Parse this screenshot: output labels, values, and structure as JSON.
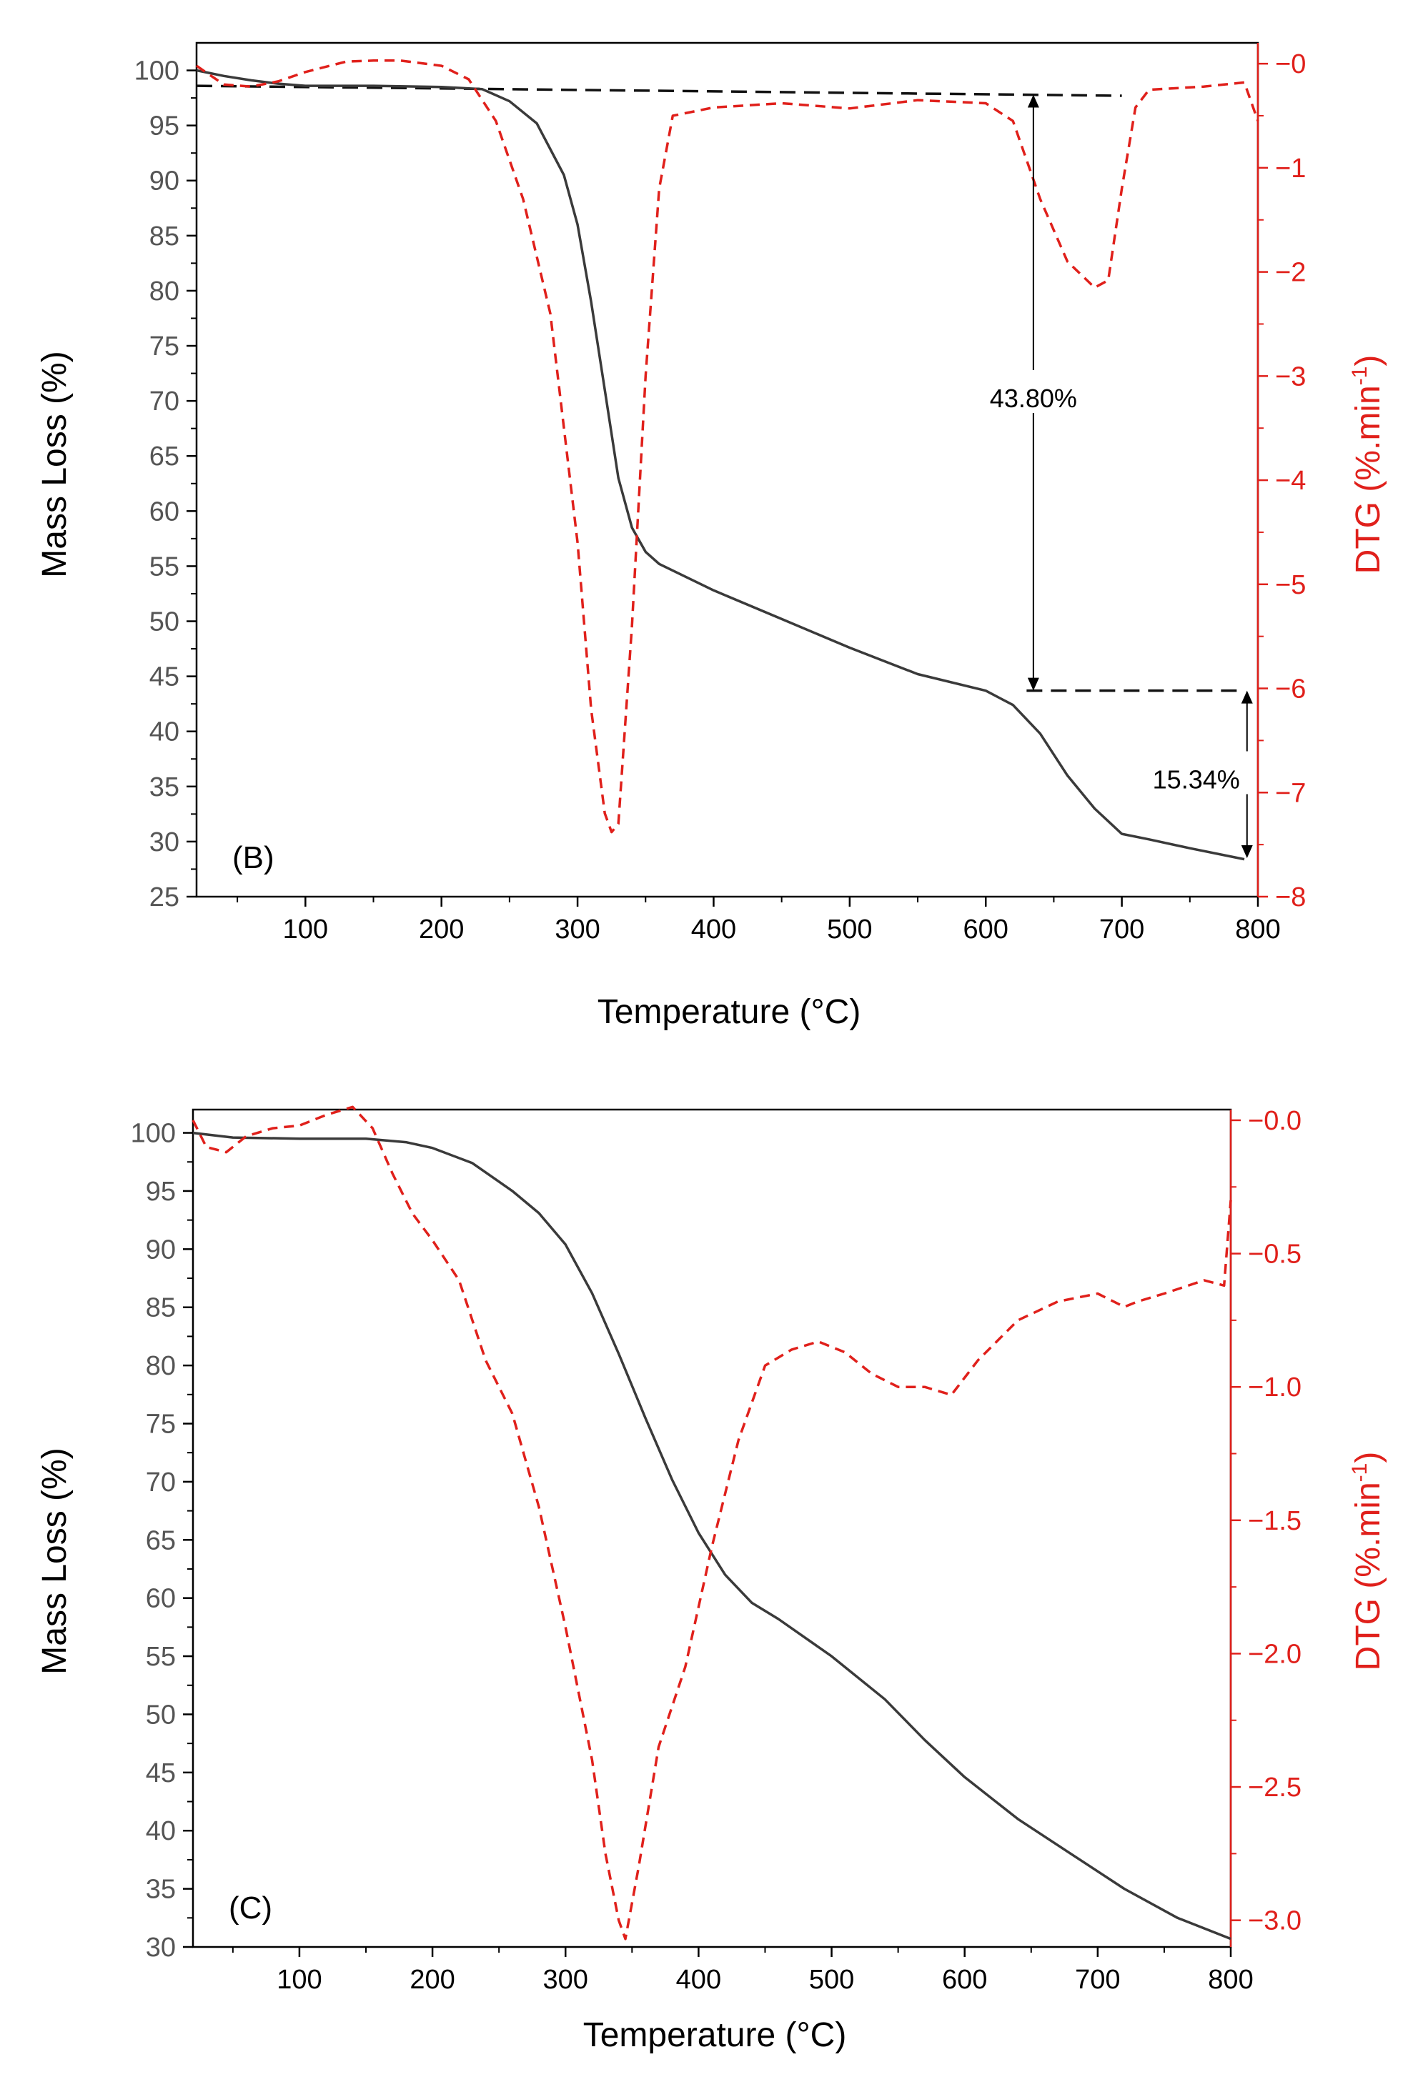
{
  "colors": {
    "tga_line": "#3a3a3a",
    "dtg_line": "#e0201b",
    "axis": "#000000",
    "left_tick_text": "#555555",
    "right_axis": "#e0201b"
  },
  "chart_data": [
    {
      "type": "line",
      "panel_label": "(B)",
      "xlabel": "Temperature (°C)",
      "ylabel": "Mass Loss (%)",
      "y2label_main": "DTG (%.min",
      "y2label_sup": "-1",
      "y2label_close": ")",
      "xlim": [
        20,
        800
      ],
      "ylim": [
        25,
        102.5
      ],
      "y2lim": [
        -8,
        0.2
      ],
      "x_ticks": [
        100,
        200,
        300,
        400,
        500,
        600,
        700,
        800
      ],
      "y_ticks": [
        25,
        30,
        35,
        40,
        45,
        50,
        55,
        60,
        65,
        70,
        75,
        80,
        85,
        90,
        95,
        100
      ],
      "y2_ticks": [
        -8,
        -7,
        -6,
        -5,
        -4,
        -3,
        -2,
        -1,
        0
      ],
      "series": [
        {
          "name": "Mass Loss",
          "axis": "left",
          "style": "solid",
          "x": [
            20,
            40,
            60,
            80,
            100,
            150,
            200,
            230,
            250,
            270,
            290,
            300,
            310,
            320,
            330,
            340,
            350,
            360,
            380,
            400,
            450,
            500,
            550,
            600,
            620,
            640,
            660,
            680,
            700,
            720,
            750,
            790
          ],
          "y": [
            100,
            99.5,
            99.1,
            98.8,
            98.6,
            98.6,
            98.5,
            98.3,
            97.2,
            95.2,
            90.5,
            86,
            79,
            71,
            63,
            58.5,
            56.3,
            55.2,
            54,
            52.8,
            50.2,
            47.6,
            45.2,
            43.7,
            42.4,
            39.8,
            36,
            33,
            30.7,
            30.2,
            29.4,
            28.4
          ]
        },
        {
          "name": "DTG",
          "axis": "right",
          "style": "dashed",
          "x": [
            20,
            40,
            60,
            80,
            100,
            130,
            150,
            170,
            200,
            220,
            240,
            260,
            280,
            300,
            310,
            320,
            325,
            330,
            340,
            350,
            360,
            370,
            400,
            450,
            500,
            550,
            600,
            620,
            640,
            660,
            680,
            690,
            700,
            710,
            720,
            760,
            790,
            800
          ],
          "y": [
            -0.02,
            -0.2,
            -0.22,
            -0.17,
            -0.08,
            0.02,
            0.03,
            0.03,
            -0.02,
            -0.15,
            -0.55,
            -1.3,
            -2.4,
            -4.6,
            -6.2,
            -7.2,
            -7.38,
            -7.3,
            -5.4,
            -3.0,
            -1.2,
            -0.5,
            -0.42,
            -0.38,
            -0.43,
            -0.35,
            -0.38,
            -0.55,
            -1.3,
            -1.9,
            -2.15,
            -2.08,
            -1.2,
            -0.42,
            -0.25,
            -0.22,
            -0.18,
            -0.55
          ]
        }
      ],
      "reference_lines": [
        {
          "name": "upper-baseline",
          "x": [
            20,
            700
          ],
          "y": [
            98.6,
            97.7
          ]
        },
        {
          "name": "lower-baseline",
          "x": [
            630,
            790
          ],
          "y": [
            43.7,
            43.7
          ]
        }
      ],
      "annotations": [
        {
          "text": "43.80%",
          "x": 635,
          "y_from": 97.8,
          "y_to": 43.7,
          "label_y": 70.2
        },
        {
          "text": "15.34%",
          "x": 792,
          "y_from": 28.5,
          "y_to": 43.7,
          "label_y": 35.6
        }
      ]
    },
    {
      "type": "line",
      "panel_label": "(C)",
      "xlabel": "Temperature (°C)",
      "ylabel": "Mass Loss (%)",
      "y2label_main": "DTG (%.min",
      "y2label_sup": "-1",
      "y2label_close": ")",
      "xlim": [
        20,
        800
      ],
      "ylim": [
        30,
        102
      ],
      "y2lim": [
        -3.1,
        0.04
      ],
      "x_ticks": [
        100,
        200,
        300,
        400,
        500,
        600,
        700,
        800
      ],
      "y_ticks": [
        30,
        35,
        40,
        45,
        50,
        55,
        60,
        65,
        70,
        75,
        80,
        85,
        90,
        95,
        100
      ],
      "y2_ticks": [
        -3.0,
        -2.5,
        -2.0,
        -1.5,
        -1.0,
        -0.5,
        -0.0
      ],
      "y2_tick_labels": [
        "-3.0",
        "-2.5",
        "-2.0",
        "-1.5",
        "-1.0",
        "-0.5",
        "-0.0"
      ],
      "series": [
        {
          "name": "Mass Loss",
          "axis": "left",
          "style": "solid",
          "x": [
            20,
            50,
            100,
            150,
            180,
            200,
            230,
            260,
            280,
            300,
            320,
            340,
            360,
            380,
            400,
            420,
            440,
            460,
            500,
            540,
            570,
            600,
            640,
            680,
            720,
            760,
            800
          ],
          "y": [
            100,
            99.6,
            99.5,
            99.5,
            99.2,
            98.7,
            97.4,
            95,
            93.1,
            90.4,
            86.2,
            81,
            75.5,
            70.2,
            65.6,
            62,
            59.6,
            58.2,
            55,
            51.3,
            47.8,
            44.6,
            41,
            38,
            35,
            32.5,
            30.7
          ]
        },
        {
          "name": "DTG",
          "axis": "right",
          "style": "dashed",
          "x": [
            20,
            30,
            45,
            60,
            80,
            100,
            120,
            140,
            155,
            170,
            185,
            200,
            220,
            240,
            260,
            280,
            300,
            320,
            330,
            340,
            345,
            355,
            370,
            390,
            410,
            430,
            450,
            470,
            490,
            510,
            530,
            550,
            570,
            590,
            610,
            640,
            670,
            700,
            720,
            730,
            750,
            780,
            795,
            800
          ],
          "y": [
            0.0,
            -0.1,
            -0.12,
            -0.06,
            -0.03,
            -0.02,
            0.02,
            0.05,
            -0.03,
            -0.2,
            -0.35,
            -0.45,
            -0.6,
            -0.9,
            -1.1,
            -1.45,
            -1.9,
            -2.4,
            -2.75,
            -3.0,
            -3.07,
            -2.8,
            -2.35,
            -2.05,
            -1.6,
            -1.2,
            -0.92,
            -0.86,
            -0.83,
            -0.87,
            -0.95,
            -1.0,
            -1.0,
            -1.03,
            -0.9,
            -0.75,
            -0.68,
            -0.65,
            -0.7,
            -0.68,
            -0.65,
            -0.6,
            -0.62,
            -0.3
          ]
        }
      ]
    }
  ]
}
